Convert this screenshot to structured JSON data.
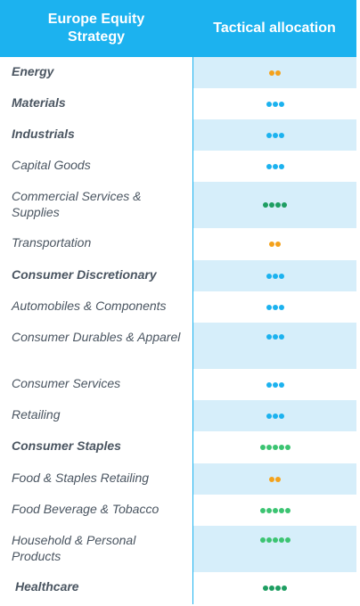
{
  "header": {
    "left": "Europe Equity\nStrategy",
    "right": "Tactical allocation"
  },
  "colors": {
    "header_bg": "#1cb2ef",
    "shade": "#d6eefa",
    "orange": "#f4a21c",
    "blue": "#1cb2ef",
    "green": "#3cc472",
    "dark_green": "#1e9e62"
  },
  "rows": [
    {
      "label": "Energy",
      "bold": true,
      "dots": 2,
      "color": "orange",
      "shaded": true
    },
    {
      "label": "Materials",
      "bold": true,
      "dots": 3,
      "color": "blue",
      "shaded": false
    },
    {
      "label": "Industrials",
      "bold": true,
      "dots": 3,
      "color": "blue",
      "shaded": true
    },
    {
      "label": "Capital Goods",
      "bold": false,
      "dots": 3,
      "color": "blue",
      "shaded": false
    },
    {
      "label": "Commercial Services & Supplies",
      "bold": false,
      "dots": 4,
      "color": "dark_green",
      "shaded": true
    },
    {
      "label": "Transportation",
      "bold": false,
      "dots": 2,
      "color": "orange",
      "shaded": false
    },
    {
      "label": "Consumer Discretionary",
      "bold": true,
      "dots": 3,
      "color": "blue",
      "shaded": true
    },
    {
      "label": "Automobiles & Components",
      "bold": false,
      "dots": 3,
      "color": "blue",
      "shaded": false
    },
    {
      "label": "Consumer Durables & Apparel",
      "bold": false,
      "dots": 3,
      "color": "blue",
      "shaded": true
    },
    {
      "label": "Consumer Services",
      "bold": false,
      "dots": 3,
      "color": "blue",
      "shaded": false
    },
    {
      "label": "Retailing",
      "bold": false,
      "dots": 3,
      "color": "blue",
      "shaded": true
    },
    {
      "label": "Consumer Staples",
      "bold": true,
      "dots": 5,
      "color": "green",
      "shaded": false
    },
    {
      "label": "Food & Staples Retailing",
      "bold": false,
      "dots": 2,
      "color": "orange",
      "shaded": true
    },
    {
      "label": "Food Beverage & Tobacco",
      "bold": false,
      "dots": 5,
      "color": "green",
      "shaded": false
    },
    {
      "label": "Household & Personal Products",
      "bold": false,
      "dots": 5,
      "color": "green",
      "shaded": true
    },
    {
      "label": "Healthcare",
      "bold": true,
      "dots": 4,
      "color": "dark_green",
      "shaded": false
    }
  ]
}
